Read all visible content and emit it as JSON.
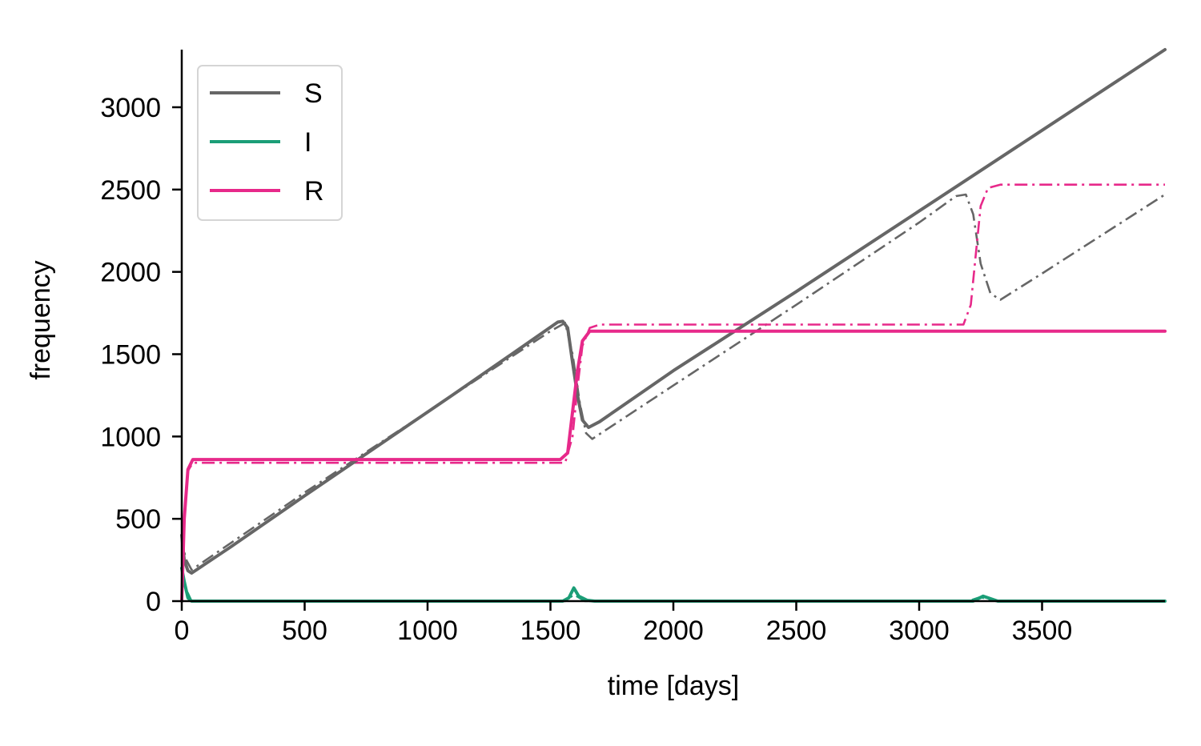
{
  "chart_data": {
    "type": "line",
    "title": "",
    "xlabel": "time [days]",
    "ylabel": "frequency",
    "xlim": [
      0,
      4000
    ],
    "ylim": [
      0,
      3350
    ],
    "xticks": [
      0,
      500,
      1000,
      1500,
      2000,
      2500,
      3000,
      3500
    ],
    "yticks": [
      0,
      500,
      1000,
      1500,
      2000,
      2500,
      3000
    ],
    "grid": false,
    "legend_placement": "top-left",
    "legend": [
      {
        "name": "S",
        "color": "#666666"
      },
      {
        "name": "I",
        "color": "#1b9e77"
      },
      {
        "name": "R",
        "color": "#e7298a"
      }
    ],
    "series": [
      {
        "name": "S",
        "style": "solid",
        "color": "#666666",
        "points": [
          [
            0,
            400
          ],
          [
            10,
            250
          ],
          [
            25,
            185
          ],
          [
            40,
            170
          ],
          [
            200,
            330
          ],
          [
            500,
            640
          ],
          [
            800,
            945
          ],
          [
            1100,
            1250
          ],
          [
            1400,
            1560
          ],
          [
            1530,
            1695
          ],
          [
            1550,
            1700
          ],
          [
            1570,
            1660
          ],
          [
            1590,
            1450
          ],
          [
            1610,
            1250
          ],
          [
            1630,
            1100
          ],
          [
            1655,
            1055
          ],
          [
            1700,
            1090
          ],
          [
            2000,
            1400
          ],
          [
            2500,
            1880
          ],
          [
            3000,
            2370
          ],
          [
            3500,
            2860
          ],
          [
            4000,
            3350
          ]
        ]
      },
      {
        "style": "dashdot",
        "color": "#666666",
        "points": [
          [
            0,
            400
          ],
          [
            15,
            260
          ],
          [
            40,
            190
          ],
          [
            500,
            660
          ],
          [
            1000,
            1150
          ],
          [
            1500,
            1640
          ],
          [
            1560,
            1690
          ],
          [
            1590,
            1500
          ],
          [
            1620,
            1200
          ],
          [
            1645,
            1020
          ],
          [
            1670,
            985
          ],
          [
            2000,
            1310
          ],
          [
            2500,
            1800
          ],
          [
            3000,
            2300
          ],
          [
            3150,
            2460
          ],
          [
            3190,
            2470
          ],
          [
            3220,
            2350
          ],
          [
            3250,
            2050
          ],
          [
            3290,
            1870
          ],
          [
            3330,
            1830
          ],
          [
            3500,
            1990
          ],
          [
            4000,
            2470
          ]
        ]
      },
      {
        "name": "I",
        "style": "solid",
        "color": "#1b9e77",
        "points": [
          [
            0,
            200
          ],
          [
            10,
            120
          ],
          [
            25,
            20
          ],
          [
            40,
            0
          ],
          [
            1550,
            0
          ],
          [
            1575,
            20
          ],
          [
            1595,
            80
          ],
          [
            1615,
            30
          ],
          [
            1650,
            5
          ],
          [
            1680,
            0
          ],
          [
            3220,
            0
          ],
          [
            3240,
            15
          ],
          [
            3260,
            30
          ],
          [
            3290,
            15
          ],
          [
            3320,
            0
          ],
          [
            4000,
            0
          ]
        ]
      },
      {
        "style": "dashdot",
        "color": "#1b9e77",
        "points": [
          [
            0,
            200
          ],
          [
            15,
            80
          ],
          [
            40,
            0
          ],
          [
            1560,
            0
          ],
          [
            1595,
            40
          ],
          [
            1640,
            0
          ],
          [
            3200,
            0
          ],
          [
            3250,
            25
          ],
          [
            3300,
            0
          ],
          [
            4000,
            0
          ]
        ]
      },
      {
        "name": "R",
        "style": "solid",
        "color": "#e7298a",
        "points": [
          [
            0,
            0
          ],
          [
            10,
            500
          ],
          [
            25,
            800
          ],
          [
            45,
            860
          ],
          [
            1540,
            860
          ],
          [
            1570,
            900
          ],
          [
            1590,
            1150
          ],
          [
            1610,
            1400
          ],
          [
            1630,
            1580
          ],
          [
            1660,
            1640
          ],
          [
            4000,
            1640
          ]
        ]
      },
      {
        "style": "dashdot",
        "color": "#e7298a",
        "points": [
          [
            0,
            0
          ],
          [
            10,
            480
          ],
          [
            25,
            790
          ],
          [
            45,
            840
          ],
          [
            1560,
            840
          ],
          [
            1590,
            1000
          ],
          [
            1610,
            1300
          ],
          [
            1630,
            1550
          ],
          [
            1660,
            1660
          ],
          [
            1700,
            1680
          ],
          [
            3180,
            1680
          ],
          [
            3210,
            1800
          ],
          [
            3230,
            2100
          ],
          [
            3250,
            2400
          ],
          [
            3280,
            2510
          ],
          [
            3330,
            2530
          ],
          [
            4000,
            2530
          ]
        ]
      }
    ]
  }
}
